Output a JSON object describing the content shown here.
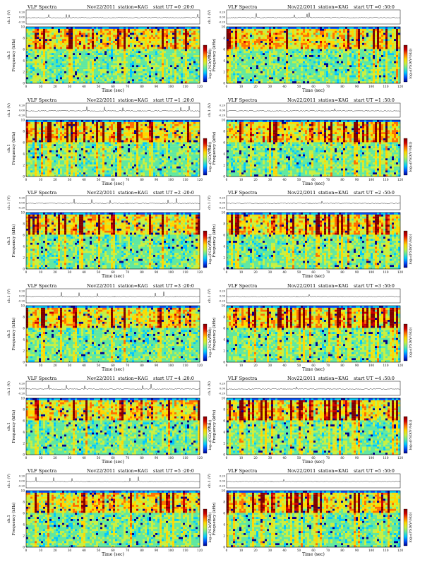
{
  "chart_data": [
    {
      "type": "heatmap",
      "header": {
        "title": "VLF Spectra",
        "date": "Nov22/2011",
        "station": "station=KAG",
        "start": "start  UT =0 :20:0"
      }
    },
    {
      "type": "heatmap",
      "header": {
        "title": "VLF Spectra",
        "date": "Nov22/2011",
        "station": "station=KAG",
        "start": "start  UT =0 :50:0"
      }
    },
    {
      "type": "heatmap",
      "header": {
        "title": "VLF Spectra",
        "date": "Nov22/2011",
        "station": "station=KAG",
        "start": "start  UT =1 :20:0"
      }
    },
    {
      "type": "heatmap",
      "header": {
        "title": "VLF Spectra",
        "date": "Nov22/2011",
        "station": "station=KAG",
        "start": "start  UT =1 :50:0"
      }
    },
    {
      "type": "heatmap",
      "header": {
        "title": "VLF Spectra",
        "date": "Nov22/2011",
        "station": "station=KAG",
        "start": "start  UT =2 :20:0"
      }
    },
    {
      "type": "heatmap",
      "header": {
        "title": "VLF Spectra",
        "date": "Nov22/2011",
        "station": "station=KAG",
        "start": "start  UT =2 :50:0"
      }
    },
    {
      "type": "heatmap",
      "header": {
        "title": "VLF Spectra",
        "date": "Nov22/2011",
        "station": "station=KAG",
        "start": "start  UT =3 :20:0"
      }
    },
    {
      "type": "heatmap",
      "header": {
        "title": "VLF Spectra",
        "date": "Nov22/2011",
        "station": "station=KAG",
        "start": "start  UT =3 :50:0"
      }
    },
    {
      "type": "heatmap",
      "header": {
        "title": "VLF Spectra",
        "date": "Nov22/2011",
        "station": "station=KAG",
        "start": "start  UT =4 :20:0"
      }
    },
    {
      "type": "heatmap",
      "header": {
        "title": "VLF Spectra",
        "date": "Nov22/2011",
        "station": "station=KAG",
        "start": "start  UT =4 :50:0"
      }
    },
    {
      "type": "heatmap",
      "header": {
        "title": "VLF Spectra",
        "date": "Nov22/2011",
        "station": "station=KAG",
        "start": "start  UT =5 :20:0"
      }
    },
    {
      "type": "heatmap",
      "header": {
        "title": "VLF Spectra",
        "date": "Nov22/2011",
        "station": "station=KAG",
        "start": "start  UT =5 :50:0"
      }
    }
  ],
  "axes": {
    "xlabel": "Time  (sec)",
    "xlim": [
      0,
      120
    ],
    "xticks": [
      0,
      10,
      20,
      30,
      40,
      50,
      60,
      70,
      80,
      90,
      100,
      110,
      120
    ],
    "ylabel_freq": "Frequency  (kHz)",
    "ylabel_channel": "ch.1",
    "ylim_freq": [
      0,
      10
    ],
    "yticks_freq": [
      0,
      2,
      4,
      6,
      8,
      10
    ],
    "ylabel_volt": "ch.1 (V)",
    "yticks_volt": [
      "0.20",
      "0.00",
      "-0.20"
    ],
    "colorbar_label": "log₁₀(PSD(V²/Hz))"
  },
  "colors": {
    "spectrum_scale": [
      "#00008f",
      "#0050ff",
      "#00c8ff",
      "#60e8a0",
      "#c8f040",
      "#ffd800",
      "#ff7000",
      "#d00000",
      "#800000"
    ],
    "background": "#ffffff",
    "axis": "#000000"
  }
}
